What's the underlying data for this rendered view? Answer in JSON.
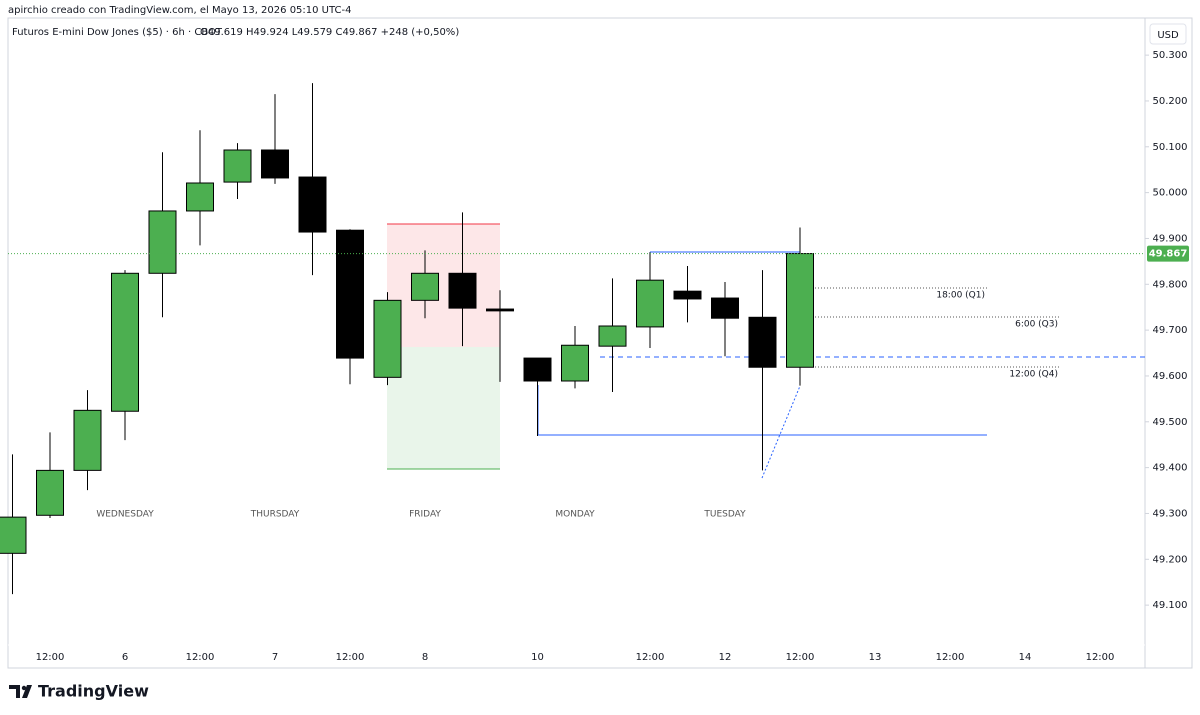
{
  "header": {
    "author_line": "apirchio creado con TradingView.com, el Mayo 13, 2026 05:10 UTC-4",
    "symbol_line": "Futuros E-mini Dow Jones ($5) · 6h · CBOT",
    "ohlc": "O49.619  H49.924  L49.579  C49.867  +248 (+0,50%)"
  },
  "chart_data": {
    "type": "candlestick",
    "categories": [
      null,
      "12:00",
      null,
      "6",
      null,
      "12:00",
      null,
      "7",
      null,
      "12:00",
      null,
      "8",
      null,
      null,
      "10",
      null,
      null,
      "12:00",
      null,
      "12",
      null,
      "12:00",
      null,
      "13",
      null,
      "12:00",
      null,
      "14",
      null,
      "12:00",
      null
    ],
    "open": [
      49.213,
      49.296,
      49.394,
      49.523,
      49.824,
      49.96,
      50.023,
      50.093,
      50.034,
      49.918,
      49.597,
      49.765,
      49.824,
      49.746,
      49.639,
      49.589,
      49.665,
      49.707,
      49.785,
      49.77,
      49.728,
      49.619,
      null,
      null,
      null,
      null,
      null,
      null,
      null,
      null,
      null
    ],
    "high": [
      49.429,
      49.477,
      49.569,
      49.831,
      50.088,
      50.136,
      50.108,
      50.215,
      50.239,
      49.92,
      49.783,
      49.874,
      49.957,
      49.787,
      49.639,
      49.709,
      49.813,
      49.87,
      49.84,
      49.805,
      49.831,
      49.924,
      null,
      null,
      null,
      null,
      null,
      null,
      null,
      null,
      null
    ],
    "low": [
      49.124,
      49.29,
      49.351,
      49.46,
      49.728,
      49.885,
      49.986,
      50.019,
      49.82,
      49.582,
      49.58,
      49.726,
      49.665,
      49.587,
      49.469,
      49.573,
      49.565,
      49.661,
      49.717,
      49.643,
      49.394,
      49.579,
      null,
      null,
      null,
      null,
      null,
      null,
      null,
      null,
      null
    ],
    "close": [
      49.292,
      49.394,
      49.525,
      49.824,
      49.96,
      50.021,
      50.093,
      50.032,
      49.914,
      49.639,
      49.765,
      49.824,
      49.748,
      49.742,
      49.589,
      49.667,
      49.709,
      49.809,
      49.768,
      49.726,
      49.619,
      49.867,
      null,
      null,
      null,
      null,
      null,
      null,
      null,
      null,
      null
    ],
    "up_color": "#4caf50",
    "down_color": "#000000",
    "ylim": [
      48.965,
      50.381
    ],
    "yticks": [
      {
        "value": 49.1,
        "label": "49.100"
      },
      {
        "value": 49.2,
        "label": "49.200"
      },
      {
        "value": 49.3,
        "label": "49.300"
      },
      {
        "value": 49.4,
        "label": "49.400"
      },
      {
        "value": 49.5,
        "label": "49.500"
      },
      {
        "value": 49.6,
        "label": "49.600"
      },
      {
        "value": 49.7,
        "label": "49.700"
      },
      {
        "value": 49.8,
        "label": "49.800"
      },
      {
        "value": 49.9,
        "label": "49.900"
      },
      {
        "value": 50.0,
        "label": "50.000"
      },
      {
        "value": 50.1,
        "label": "50.100"
      },
      {
        "value": 50.2,
        "label": "50.200"
      },
      {
        "value": 50.3,
        "label": "50.300"
      }
    ],
    "grid": false,
    "currency": "USD",
    "day_labels": [
      "WEDNESDAY",
      "THURSDAY",
      "FRIDAY",
      "MONDAY",
      "TUESDAY"
    ],
    "last_price": {
      "value": 49.867,
      "label": "49.867"
    },
    "drawing_labels": [
      "18:00 (Q1)",
      "6:00 (Q3)",
      "12:00 (Q4)"
    ]
  },
  "footer": {
    "brand": "TradingView"
  }
}
